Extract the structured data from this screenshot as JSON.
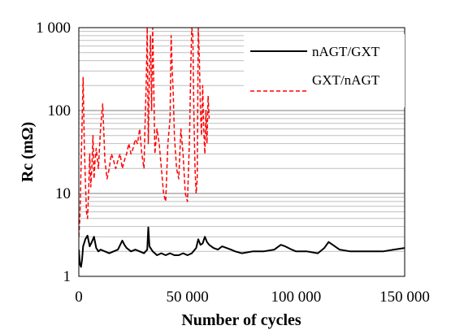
{
  "chart_data": {
    "type": "line",
    "title": "",
    "xlabel": "Number of cycles",
    "ylabel": "Rc (mΩ)",
    "xlim": [
      0,
      150000
    ],
    "ylim": [
      1,
      1000
    ],
    "y_scale": "log",
    "grid": {
      "major": true,
      "minor": true
    },
    "legend_position": "top-right",
    "x_ticks": [
      {
        "value": 0,
        "label": "0"
      },
      {
        "value": 50000,
        "label": "50 000"
      },
      {
        "value": 100000,
        "label": "100 000"
      },
      {
        "value": 150000,
        "label": "150 000"
      }
    ],
    "y_ticks": [
      {
        "value": 1,
        "label": "1"
      },
      {
        "value": 10,
        "label": "10"
      },
      {
        "value": 100,
        "label": "100"
      },
      {
        "value": 1000,
        "label": "1 000"
      }
    ],
    "series": [
      {
        "name": "nAGT/GXT",
        "color": "#000000",
        "dash": "solid",
        "x": [
          0,
          500,
          1000,
          1500,
          2000,
          3000,
          4000,
          5000,
          6000,
          7000,
          8000,
          9000,
          10000,
          12000,
          14000,
          16000,
          18000,
          20000,
          21000,
          22000,
          24000,
          26000,
          28000,
          30000,
          31500,
          32000,
          32500,
          34000,
          36000,
          38000,
          40000,
          42000,
          44000,
          46000,
          48000,
          50000,
          52000,
          54000,
          55000,
          56000,
          57000,
          58000,
          59000,
          60000,
          62000,
          64000,
          66000,
          68000,
          70000,
          72000,
          75000,
          80000,
          85000,
          90000,
          93000,
          95000,
          98000,
          100000,
          105000,
          110000,
          113000,
          115000,
          120000,
          125000,
          130000,
          135000,
          140000,
          145000,
          150000
        ],
        "y": [
          2.1,
          1.4,
          1.3,
          1.6,
          2.3,
          2.8,
          3.1,
          2.3,
          2.6,
          3.0,
          2.2,
          2.0,
          2.1,
          2.0,
          1.9,
          2.0,
          2.1,
          2.7,
          2.4,
          2.2,
          2.0,
          2.1,
          2.0,
          1.9,
          2.1,
          3.9,
          2.3,
          2.0,
          1.8,
          1.9,
          1.8,
          1.9,
          1.8,
          1.8,
          1.9,
          1.8,
          1.9,
          2.2,
          2.8,
          2.4,
          2.5,
          3.0,
          2.6,
          2.4,
          2.2,
          2.1,
          2.3,
          2.2,
          2.1,
          2.0,
          1.9,
          2.0,
          2.0,
          2.1,
          2.4,
          2.3,
          2.1,
          2.0,
          2.0,
          1.9,
          2.2,
          2.6,
          2.1,
          2.0,
          2.0,
          2.0,
          2.0,
          2.1,
          2.2
        ]
      },
      {
        "name": "GXT/nAGT",
        "color": "#ff0000",
        "dash": "dashed",
        "x": [
          0,
          500,
          1000,
          1500,
          2000,
          2500,
          3000,
          3500,
          4000,
          4500,
          5000,
          5500,
          6000,
          6500,
          7000,
          7500,
          8000,
          9000,
          10000,
          11000,
          12000,
          13000,
          14000,
          15000,
          16000,
          17000,
          18000,
          19000,
          20000,
          21000,
          22000,
          23000,
          24000,
          25000,
          26000,
          27000,
          28000,
          29000,
          30000,
          30500,
          31000,
          31500,
          32000,
          32500,
          33000,
          33500,
          34000,
          34500,
          35000,
          36000,
          37000,
          38000,
          39000,
          40000,
          41000,
          42000,
          42500,
          43000,
          43500,
          44000,
          45000,
          46000,
          47000,
          48000,
          49000,
          50000,
          50500,
          51000,
          51500,
          52000,
          52500,
          53000,
          53500,
          54000,
          54500,
          55000,
          55500,
          56000,
          56500,
          57000,
          57500,
          58000,
          58500,
          59000,
          59500,
          60000
        ],
        "y": [
          3,
          5,
          20,
          70,
          250,
          40,
          15,
          6,
          5,
          10,
          30,
          12,
          20,
          50,
          15,
          25,
          35,
          20,
          60,
          120,
          25,
          15,
          20,
          30,
          25,
          20,
          25,
          30,
          20,
          25,
          30,
          40,
          30,
          35,
          45,
          40,
          60,
          30,
          20,
          70,
          200,
          1000,
          40,
          300,
          800,
          100,
          1000,
          200,
          30,
          60,
          40,
          20,
          10,
          8,
          40,
          80,
          800,
          300,
          150,
          50,
          20,
          15,
          60,
          30,
          10,
          8,
          20,
          50,
          300,
          1000,
          800,
          80,
          20,
          10,
          15,
          1000,
          400,
          100,
          50,
          200,
          60,
          30,
          100,
          40,
          150,
          80
        ]
      }
    ]
  }
}
